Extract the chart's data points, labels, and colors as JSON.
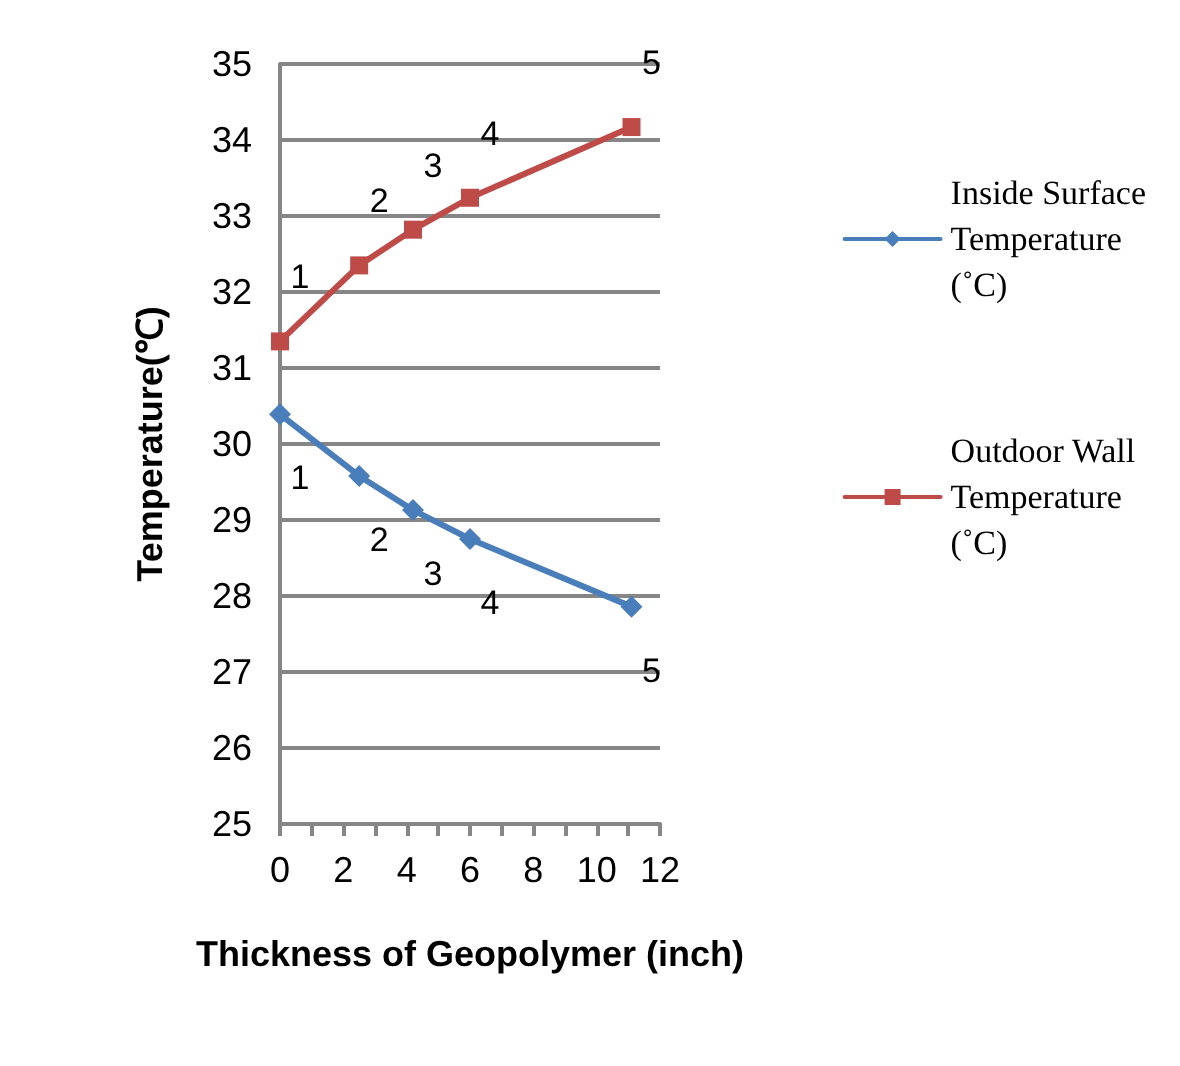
{
  "chart_data": {
    "type": "line",
    "xlabel": "Thickness of Geopolymer (inch)",
    "ylabel": "Temperature(℃)",
    "x": [
      0,
      2.5,
      4.2,
      6,
      11.1
    ],
    "series": [
      {
        "name": "Inside Surface Temperature (˚C)",
        "color": "#4a7ebb",
        "marker": "diamond",
        "values": [
          30.39,
          29.58,
          29.13,
          28.75,
          27.86
        ]
      },
      {
        "name": "Outdoor Wall Temperature (˚C)",
        "color": "#be4b48",
        "marker": "square",
        "values": [
          31.35,
          32.35,
          32.82,
          33.24,
          34.17
        ]
      }
    ],
    "xlim": [
      0,
      12
    ],
    "xticks": [
      0,
      {
        "value": 1,
        "label": null
      },
      2,
      {
        "value": 3,
        "label": null
      },
      4,
      {
        "value": 5,
        "label": null
      },
      6,
      {
        "value": 7,
        "label": null
      },
      8,
      {
        "value": 9,
        "label": null
      },
      10,
      {
        "value": 11,
        "label": null
      },
      12
    ],
    "ylim": [
      25,
      35
    ],
    "yticks": [
      25,
      26,
      27,
      28,
      29,
      30,
      31,
      32,
      33,
      34,
      35
    ],
    "annotations": [
      {
        "text": "1",
        "x": 0,
        "y": 31.35
      },
      {
        "text": "2",
        "x": 2.5,
        "y": 32.35
      },
      {
        "text": "3",
        "x": 4.2,
        "y": 32.82
      },
      {
        "text": "4",
        "x": 6,
        "y": 33.24
      },
      {
        "text": "5",
        "x": 11.1,
        "y": 34.17
      },
      {
        "text": "1",
        "x": 0,
        "y": 30.39
      },
      {
        "text": "2",
        "x": 2.5,
        "y": 29.58
      },
      {
        "text": "3",
        "x": 4.2,
        "y": 29.13
      },
      {
        "text": "4",
        "x": 6,
        "y": 28.75
      },
      {
        "text": "5",
        "x": 11.1,
        "y": 27.86
      }
    ],
    "grid": "y",
    "legend": "right",
    "line_style": "solid"
  }
}
